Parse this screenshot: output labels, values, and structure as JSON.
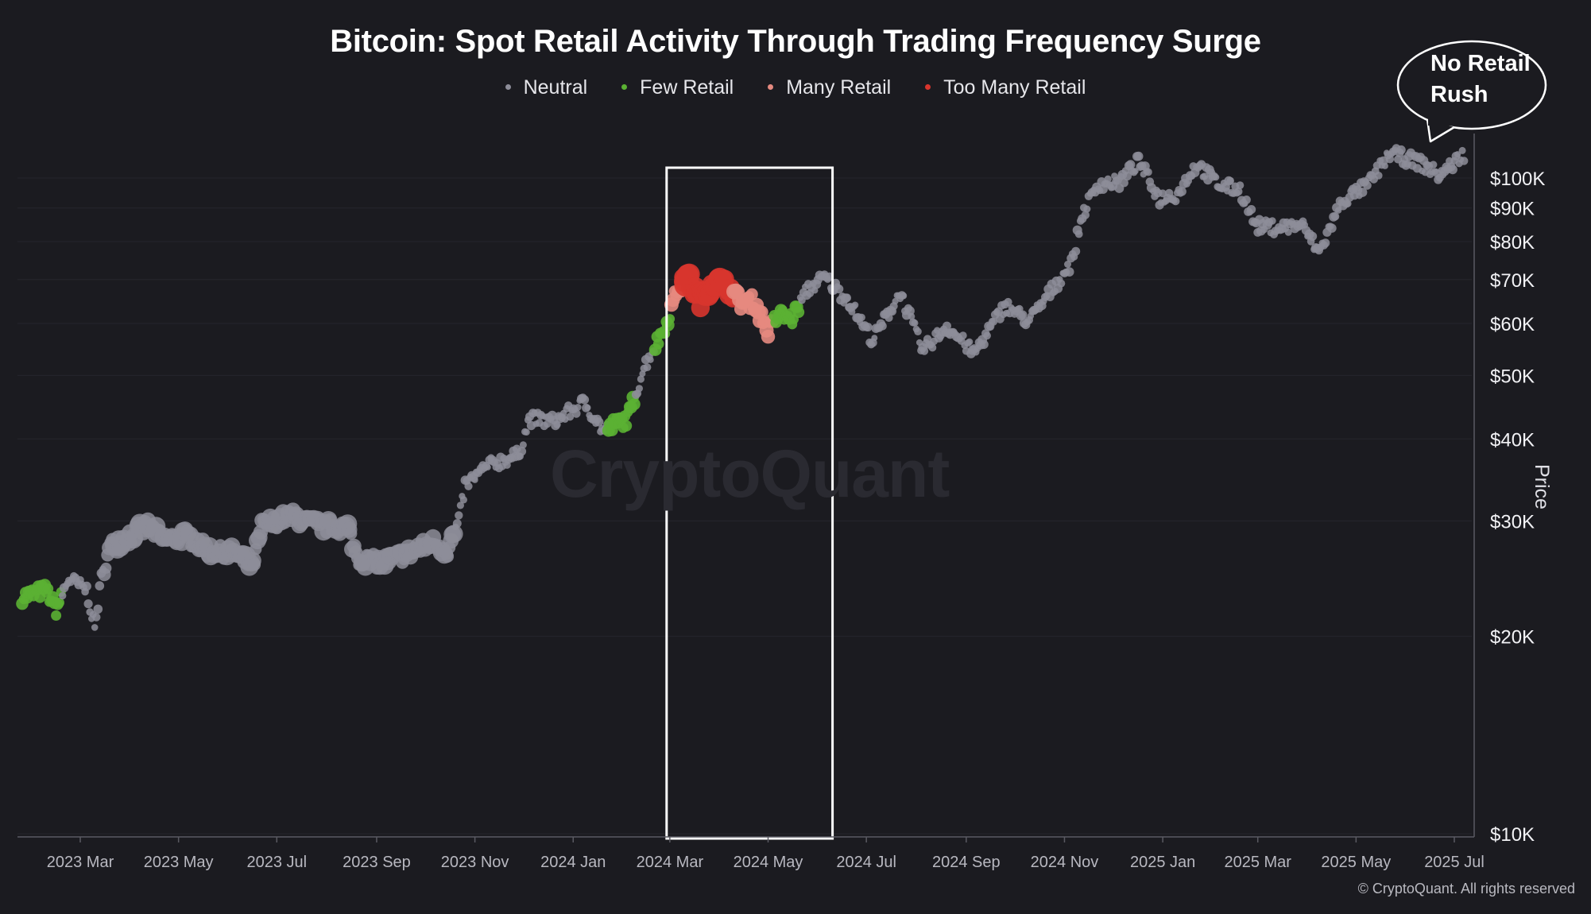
{
  "chart_data": {
    "type": "scatter",
    "title": "Bitcoin: Spot Retail Activity Through Trading Frequency Surge",
    "ylabel": "Price",
    "xlabel": "",
    "y_scale": "log",
    "ylim": [
      10000,
      120000
    ],
    "y_ticks": [
      {
        "value": 100000,
        "label": "$100K"
      },
      {
        "value": 90000,
        "label": "$90K"
      },
      {
        "value": 80000,
        "label": "$80K"
      },
      {
        "value": 70000,
        "label": "$70K"
      },
      {
        "value": 60000,
        "label": "$60K"
      },
      {
        "value": 50000,
        "label": "$50K"
      },
      {
        "value": 40000,
        "label": "$40K"
      },
      {
        "value": 30000,
        "label": "$30K"
      },
      {
        "value": 20000,
        "label": "$20K"
      },
      {
        "value": 10000,
        "label": "$10K"
      }
    ],
    "x_ticks": [
      {
        "date": "2023-03-01",
        "label": "2023 Mar"
      },
      {
        "date": "2023-05-01",
        "label": "2023 May"
      },
      {
        "date": "2023-07-01",
        "label": "2023 Jul"
      },
      {
        "date": "2023-09-01",
        "label": "2023 Sep"
      },
      {
        "date": "2023-11-01",
        "label": "2023 Nov"
      },
      {
        "date": "2024-01-01",
        "label": "2024 Jan"
      },
      {
        "date": "2024-03-01",
        "label": "2024 Mar"
      },
      {
        "date": "2024-05-01",
        "label": "2024 May"
      },
      {
        "date": "2024-07-01",
        "label": "2024 Jul"
      },
      {
        "date": "2024-09-01",
        "label": "2024 Sep"
      },
      {
        "date": "2024-11-01",
        "label": "2024 Nov"
      },
      {
        "date": "2025-01-01",
        "label": "2025 Jan"
      },
      {
        "date": "2025-03-01",
        "label": "2025 Mar"
      },
      {
        "date": "2025-05-01",
        "label": "2025 May"
      },
      {
        "date": "2025-07-01",
        "label": "2025 Jul"
      }
    ],
    "xlim": [
      "2023-01-24",
      "2025-07-08"
    ],
    "legend_position": "top",
    "series": [
      {
        "name": "Neutral",
        "color": "#8d8d99"
      },
      {
        "name": "Few Retail",
        "color": "#5bb133"
      },
      {
        "name": "Many Retail",
        "color": "#e58a80"
      },
      {
        "name": "Too Many Retail",
        "color": "#d8352d"
      }
    ],
    "price_path": [
      [
        "2023-01-24",
        23000,
        1
      ],
      [
        "2023-02-08",
        23500,
        1
      ],
      [
        "2023-02-14",
        22000,
        1
      ],
      [
        "2023-02-22",
        24500,
        0
      ],
      [
        "2023-03-05",
        23500,
        0
      ],
      [
        "2023-03-10",
        20500,
        0
      ],
      [
        "2023-03-14",
        24500,
        0
      ],
      [
        "2023-03-20",
        27500,
        0
      ],
      [
        "2023-04-01",
        28500,
        0
      ],
      [
        "2023-04-12",
        29500,
        0
      ],
      [
        "2023-04-22",
        28000,
        0
      ],
      [
        "2023-05-05",
        28500,
        0
      ],
      [
        "2023-05-20",
        27000,
        0
      ],
      [
        "2023-06-05",
        26800,
        0
      ],
      [
        "2023-06-16",
        25500,
        0
      ],
      [
        "2023-06-22",
        29500,
        0
      ],
      [
        "2023-07-10",
        30500,
        0
      ],
      [
        "2023-07-28",
        29500,
        0
      ],
      [
        "2023-08-14",
        29300,
        0
      ],
      [
        "2023-08-20",
        26300,
        0
      ],
      [
        "2023-09-05",
        25900,
        0
      ],
      [
        "2023-09-20",
        26700,
        0
      ],
      [
        "2023-10-06",
        27800,
        0
      ],
      [
        "2023-10-15",
        27000,
        0
      ],
      [
        "2023-10-22",
        30000,
        0
      ],
      [
        "2023-10-26",
        34000,
        0
      ],
      [
        "2023-11-10",
        36500,
        0
      ],
      [
        "2023-11-28",
        37800,
        0
      ],
      [
        "2023-12-05",
        43000,
        0
      ],
      [
        "2023-12-20",
        42500,
        0
      ],
      [
        "2024-01-08",
        45500,
        0
      ],
      [
        "2024-01-20",
        41000,
        0
      ],
      [
        "2024-01-26",
        42000,
        1
      ],
      [
        "2024-02-04",
        43000,
        1
      ],
      [
        "2024-02-14",
        51500,
        0
      ],
      [
        "2024-02-28",
        60000,
        1
      ],
      [
        "2024-03-05",
        67000,
        2
      ],
      [
        "2024-03-12",
        70500,
        3
      ],
      [
        "2024-03-20",
        65000,
        3
      ],
      [
        "2024-03-28",
        69500,
        3
      ],
      [
        "2024-04-06",
        68500,
        3
      ],
      [
        "2024-04-14",
        64500,
        2
      ],
      [
        "2024-04-22",
        65000,
        2
      ],
      [
        "2024-05-01",
        58500,
        2
      ],
      [
        "2024-05-08",
        62000,
        1
      ],
      [
        "2024-05-16",
        61000,
        1
      ],
      [
        "2024-05-25",
        67500,
        0
      ],
      [
        "2024-06-05",
        70500,
        0
      ],
      [
        "2024-06-20",
        65000,
        0
      ],
      [
        "2024-07-05",
        56500,
        0
      ],
      [
        "2024-07-22",
        67000,
        0
      ],
      [
        "2024-08-05",
        54500,
        0
      ],
      [
        "2024-08-20",
        59500,
        0
      ],
      [
        "2024-09-06",
        54000,
        0
      ],
      [
        "2024-09-25",
        64000,
        0
      ],
      [
        "2024-10-10",
        60500,
        0
      ],
      [
        "2024-10-28",
        69500,
        0
      ],
      [
        "2024-11-06",
        75000,
        0
      ],
      [
        "2024-11-12",
        88000,
        0
      ],
      [
        "2024-11-22",
        98000,
        0
      ],
      [
        "2024-12-05",
        98500,
        0
      ],
      [
        "2024-12-17",
        106000,
        0
      ],
      [
        "2024-12-30",
        93000,
        0
      ],
      [
        "2025-01-10",
        94500,
        0
      ],
      [
        "2025-01-22",
        105000,
        0
      ],
      [
        "2025-02-05",
        97500,
        0
      ],
      [
        "2025-02-18",
        96000,
        0
      ],
      [
        "2025-02-28",
        84500,
        0
      ],
      [
        "2025-03-15",
        84000,
        0
      ],
      [
        "2025-03-28",
        85000,
        0
      ],
      [
        "2025-04-08",
        77000,
        0
      ],
      [
        "2025-04-22",
        92000,
        0
      ],
      [
        "2025-05-08",
        97500,
        0
      ],
      [
        "2025-05-22",
        109000,
        0
      ],
      [
        "2025-06-08",
        106000,
        0
      ],
      [
        "2025-06-22",
        101000,
        0
      ],
      [
        "2025-07-08",
        109500,
        0
      ]
    ],
    "annotations": [
      {
        "type": "box",
        "x_start": "2024-02-28",
        "x_end": "2024-06-10",
        "label": ""
      },
      {
        "type": "callout",
        "text": "No Retail Rush",
        "target": "2025-07-08"
      }
    ]
  },
  "callout": {
    "line1": "No Retail",
    "line2": "Rush"
  },
  "watermark": "CryptoQuant",
  "copyright": "© CryptoQuant. All rights reserved"
}
